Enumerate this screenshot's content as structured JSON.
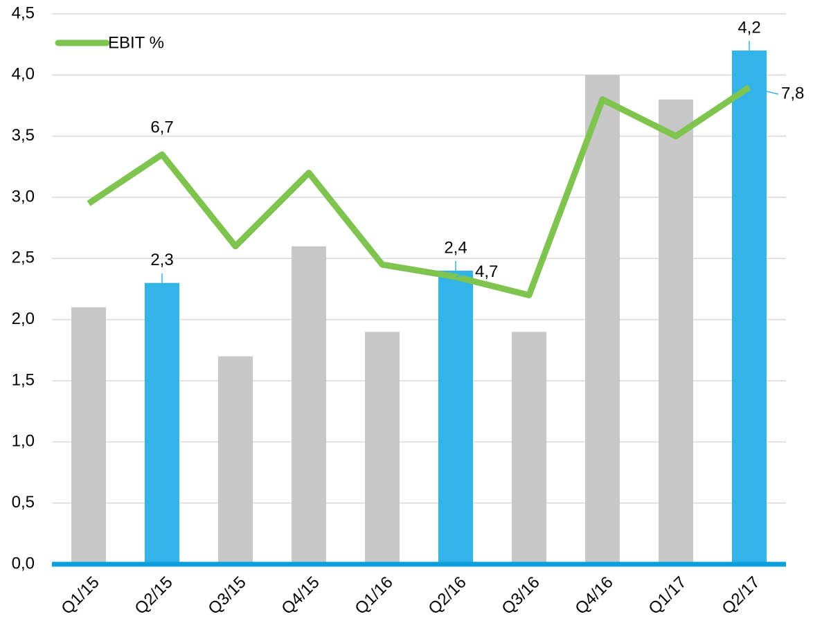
{
  "chart_data": {
    "type": "bar_line",
    "categories": [
      "Q1/15",
      "Q2/15",
      "Q3/15",
      "Q4/15",
      "Q1/16",
      "Q2/16",
      "Q3/16",
      "Q4/16",
      "Q1/17",
      "Q2/17"
    ],
    "series": [
      {
        "name": null,
        "type": "bar",
        "values": [
          2.1,
          2.3,
          1.7,
          2.6,
          1.9,
          2.4,
          1.9,
          4.0,
          3.8,
          4.2
        ],
        "colors": [
          "#c8c8c8",
          "#33b4e8",
          "#c8c8c8",
          "#c8c8c8",
          "#c8c8c8",
          "#33b4e8",
          "#c8c8c8",
          "#c8c8c8",
          "#c8c8c8",
          "#33b4e8"
        ],
        "value_labels": [
          null,
          "2,3",
          null,
          null,
          null,
          "2,4",
          null,
          null,
          null,
          "4,2"
        ]
      },
      {
        "name": "EBIT %",
        "type": "line",
        "axis": "y2",
        "color": "#7ec44f",
        "values": [
          5.9,
          6.7,
          5.2,
          6.4,
          4.9,
          4.7,
          4.4,
          7.6,
          7.0,
          7.8
        ],
        "value_labels": [
          null,
          "6,7",
          null,
          null,
          null,
          "4,7",
          null,
          null,
          null,
          "7,8"
        ]
      }
    ],
    "ylim": [
      0,
      4.5
    ],
    "yticks": [
      {
        "value": 0,
        "label": "0,0"
      },
      {
        "value": 0.5,
        "label": "0,5"
      },
      {
        "value": 1.0,
        "label": "1,0"
      },
      {
        "value": 1.5,
        "label": "1,5"
      },
      {
        "value": 2.0,
        "label": "2,0"
      },
      {
        "value": 2.5,
        "label": "2,5"
      },
      {
        "value": 3.0,
        "label": "3,0"
      },
      {
        "value": 3.5,
        "label": "3,5"
      },
      {
        "value": 4.0,
        "label": "4,0"
      },
      {
        "value": 4.5,
        "label": "4,5"
      }
    ],
    "y2lim": [
      0,
      9
    ],
    "grid": true,
    "legend": "upper left",
    "baseline_color": "#0aa0dc"
  }
}
